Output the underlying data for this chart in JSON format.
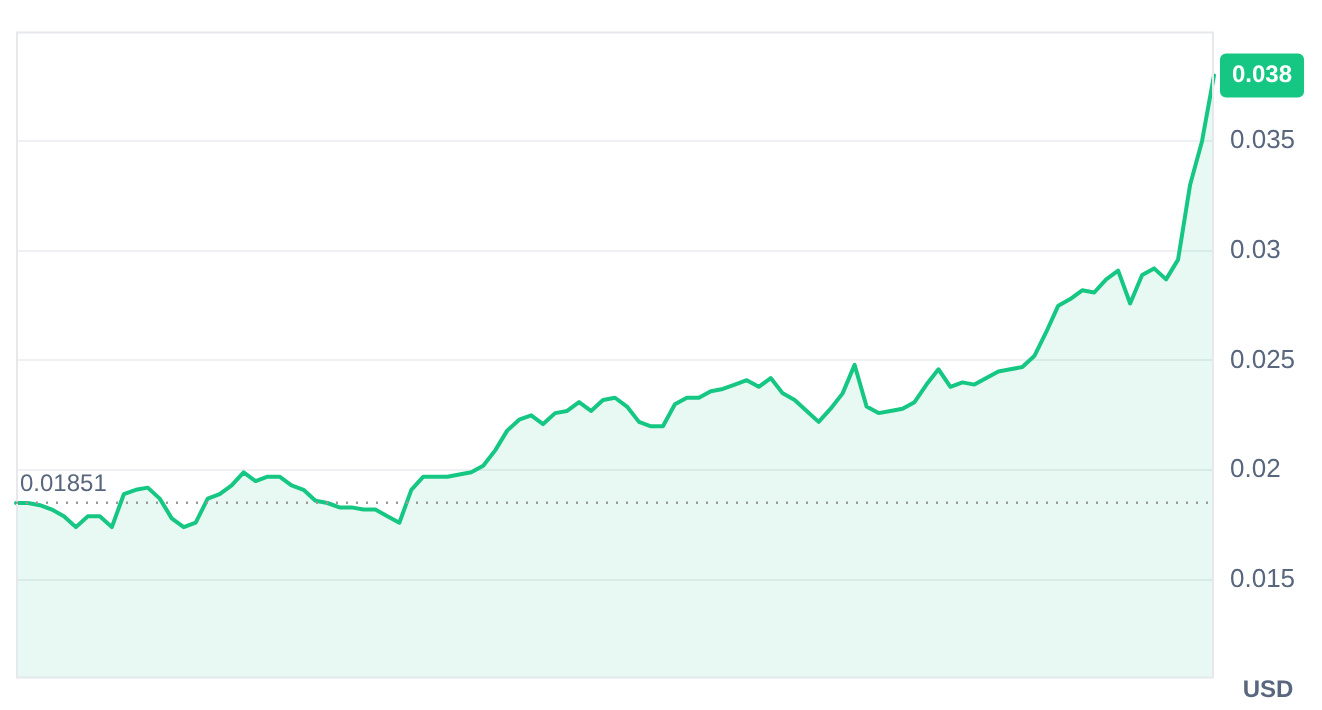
{
  "chart_data": {
    "type": "area",
    "ylabel": "USD",
    "categories": [
      null,
      null,
      null,
      null,
      null,
      null,
      null,
      null,
      null,
      null,
      null,
      null,
      null,
      null,
      null,
      null,
      null,
      null,
      null,
      null,
      null,
      null,
      null,
      null,
      null,
      null,
      null,
      null,
      null,
      null,
      null,
      null,
      null,
      null,
      null,
      null,
      null,
      null,
      null,
      null,
      null,
      null,
      null,
      null,
      null,
      null,
      null,
      null,
      null,
      null,
      null,
      null,
      null,
      null,
      null,
      null,
      null,
      null,
      null,
      null,
      null,
      null,
      null,
      null,
      null,
      null,
      null,
      null,
      null,
      null,
      null,
      null,
      null,
      null,
      null,
      null,
      null,
      null,
      null,
      null,
      null,
      null,
      null,
      null,
      null,
      null,
      null,
      null,
      null,
      null,
      null,
      null,
      null,
      null,
      null,
      null,
      null,
      null,
      null,
      null,
      null
    ],
    "series": [
      {
        "color": "#16c784",
        "values": [
          0.0185,
          0.0185,
          0.0184,
          0.0182,
          0.0179,
          0.0174,
          0.0179,
          0.0179,
          0.0174,
          0.0189,
          0.0191,
          0.0192,
          0.0187,
          0.0178,
          0.0174,
          0.0176,
          0.0187,
          0.0189,
          0.0193,
          0.0199,
          0.0195,
          0.0197,
          0.0197,
          0.0193,
          0.0191,
          0.0186,
          0.0185,
          0.0183,
          0.0183,
          0.0182,
          0.0182,
          0.0179,
          0.0176,
          0.0191,
          0.0197,
          0.0197,
          0.0197,
          0.0198,
          0.0199,
          0.0202,
          0.0209,
          0.0218,
          0.0223,
          0.0225,
          0.0221,
          0.0226,
          0.0227,
          0.0231,
          0.0227,
          0.0232,
          0.0233,
          0.0229,
          0.0222,
          0.022,
          0.022,
          0.023,
          0.0233,
          0.0233,
          0.0236,
          0.0237,
          0.0239,
          0.0241,
          0.0238,
          0.0242,
          0.0235,
          0.0232,
          0.0227,
          0.0222,
          0.0228,
          0.0235,
          0.0248,
          0.0229,
          0.0226,
          0.0227,
          0.0228,
          0.0231,
          0.0239,
          0.0246,
          0.0238,
          0.024,
          0.0239,
          0.0242,
          0.0245,
          0.0246,
          0.0247,
          0.0252,
          0.0263,
          0.0275,
          0.0278,
          0.0282,
          0.0281,
          0.0287,
          0.0291,
          0.0276,
          0.0289,
          0.0292,
          0.0287,
          0.0296,
          0.033,
          0.035,
          0.038
        ]
      }
    ],
    "ylim": [
      0.0105,
      0.04
    ],
    "yticks": [
      0.015,
      0.02,
      0.025,
      0.03,
      0.035
    ],
    "grid": "y",
    "legend": false,
    "marker": "none",
    "ref_lines": [
      {
        "axis": "y",
        "value": 0.01851,
        "label": "0.01851",
        "color": "#9a9a9a",
        "line_style": "dotted"
      }
    ],
    "annotations": [
      {
        "text": "0.038",
        "y": 0.038
      }
    ]
  }
}
